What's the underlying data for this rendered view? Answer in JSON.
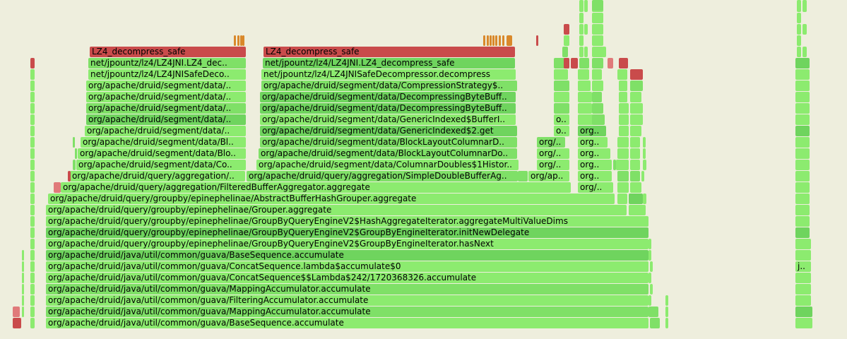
{
  "flamegraph": {
    "background": "#eeeedd",
    "palette": {
      "g1": "#8ceb6f",
      "g2": "#7fe067",
      "g3": "#6fd45e",
      "g4": "#62c756",
      "r1": "#c94b4b",
      "r2": "#e07a7a",
      "o1": "#d9882a"
    },
    "labels": {
      "l1": "LZ4_decompress_safe",
      "l2": "net/jpountz/lz4/LZ4JNI.LZ4_dec..",
      "l3": "net/jpountz/lz4/LZ4JNISafeDeco..",
      "l4": "org/apache/druid/segment/data/..",
      "l5": "org/apache/druid/segment/data/Bl..",
      "l6": "org/apache/druid/segment/data/Blo..",
      "l7": "org/apache/druid/segment/data/Co..",
      "l8": "org/apache/druid/query/aggregation/..",
      "m2": "net/jpountz/lz4/LZ4JNI.LZ4_decompress_safe",
      "m3": "net/jpountz/lz4/LZ4JNISafeDecompressor.decompress",
      "m4": "org/apache/druid/segment/data/CompressionStrategy$..",
      "m5": "org/apache/druid/segment/data/DecompressingByteBuff..",
      "m6": "org/apache/druid/segment/data/DecompressingByteBuff..",
      "m7": "org/apache/druid/segment/data/GenericIndexed$BufferI..",
      "m8": "org/apache/druid/segment/data/GenericIndexed$2.get",
      "m9": "org/apache/druid/segment/data/BlockLayoutColumnarD..",
      "m10": "org/apache/druid/segment/data/BlockLayoutColumnarDo..",
      "m11": "org/apache/druid/segment/data/ColumnarDoubles$1Histor..",
      "m12": "org/apache/druid/query/aggregation/SimpleDoubleBufferAg..",
      "f1": "org/apache/druid/query/aggregation/FilteredBufferAggregator.aggregate",
      "f2": "org/apache/druid/query/groupby/epinephelinae/AbstractBufferHashGrouper.aggregate",
      "f3": "org/apache/druid/query/groupby/epinephelinae/Grouper.aggregate",
      "f4": "org/apache/druid/query/groupby/epinephelinae/GroupByQueryEngineV2$HashAggregateIterator.aggregateMultiValueDims",
      "f5": "org/apache/druid/query/groupby/epinephelinae/GroupByQueryEngineV2$GroupByEngineIterator.initNewDelegate",
      "f6": "org/apache/druid/query/groupby/epinephelinae/GroupByQueryEngineV2$GroupByEngineIterator.hasNext",
      "f7": "org/apache/druid/java/util/common/guava/BaseSequence.accumulate",
      "f8": "org/apache/druid/java/util/common/guava/ConcatSequence.lambda$accumulate$0",
      "f9": "org/apache/druid/java/util/common/guava/ConcatSequence$$Lambda$242/1720368326.accumulate",
      "f10": "org/apache/druid/java/util/common/guava/MappingAccumulator.accumulate",
      "f11": "org/apache/druid/java/util/common/guava/FilteringAccumulator.accumulate",
      "f12": "org/apache/druid/java/util/common/guava/MappingAccumulator.accumulate",
      "f13": "org/apache/druid/java/util/common/guava/BaseSequence.accumulate",
      "s1": "org/..",
      "s2": "org..",
      "s3": "org/ap..",
      "s4": "o..",
      "s5": "j.."
    }
  }
}
